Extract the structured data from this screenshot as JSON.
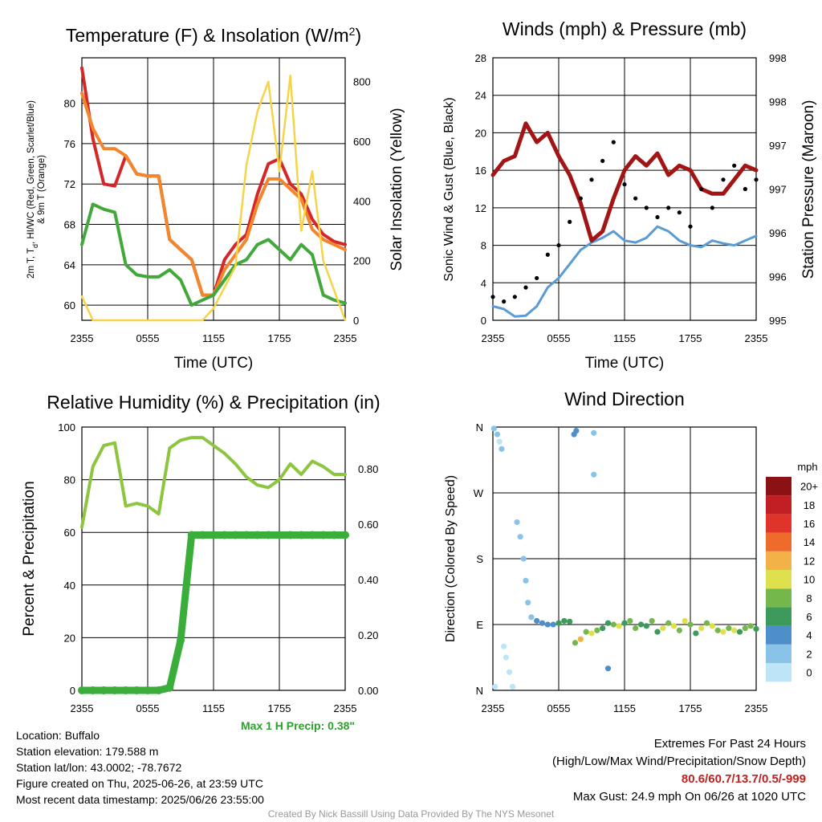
{
  "colors": {
    "red": "#d62728",
    "orange": "#f2862d",
    "green": "#42a83a",
    "yellow": "#f5d547",
    "maroon": "#a31515",
    "blue": "#5b9bd5",
    "black": "#000000",
    "rh": "#8cc63f",
    "precip": "#3aad3a"
  },
  "time_ticks": [
    "2355",
    "0555",
    "1155",
    "1755",
    "2355"
  ],
  "chart_data": [
    {
      "type": "line",
      "title": "Temperature (F) & Insolation (W/m²)",
      "xlabel": "Time (UTC)",
      "ylabel": "2m T, Td, HI/WC (Red, Green, Scarlet/Blue) & 9m T (Orange)",
      "ylabel2": "Solar Insolation (Yellow)",
      "yticks": [
        60,
        64,
        68,
        72,
        76,
        80
      ],
      "ylim": [
        58.5,
        84.5
      ],
      "yticks2": [
        0,
        200,
        400,
        600,
        800
      ],
      "ylim2": [
        0,
        880
      ],
      "x": [
        0,
        1,
        2,
        3,
        4,
        5,
        6,
        7,
        8,
        9,
        10,
        11,
        12,
        13,
        14,
        15,
        16,
        17,
        18,
        19,
        20,
        21,
        22,
        23,
        24
      ],
      "series": [
        {
          "name": "2m T",
          "axis": "left",
          "color": "red",
          "values": [
            83.5,
            76.5,
            72,
            71.8,
            74.8,
            73,
            72.8,
            72.8,
            66.5,
            65.5,
            64.5,
            61,
            61,
            64.5,
            66,
            67,
            71,
            74,
            74.5,
            72,
            71,
            68.5,
            67,
            66.3,
            66
          ]
        },
        {
          "name": "9m T",
          "axis": "left",
          "color": "orange",
          "values": [
            81,
            77.5,
            75.5,
            75.5,
            74.8,
            73,
            72.8,
            72.8,
            66.5,
            65.5,
            64.5,
            61,
            61,
            63.5,
            65,
            66.5,
            70,
            72.5,
            72.5,
            71.5,
            70.5,
            67.5,
            66.5,
            66,
            65.5
          ]
        },
        {
          "name": "Td",
          "axis": "left",
          "color": "green",
          "values": [
            66,
            70,
            69.5,
            69.2,
            64,
            63,
            62.8,
            62.8,
            63.5,
            62.5,
            60,
            60.5,
            61,
            62.5,
            64,
            64.5,
            66,
            66.5,
            65.5,
            64.5,
            66,
            65,
            61,
            60.5,
            60.2
          ]
        },
        {
          "name": "Solar Insolation",
          "axis": "right",
          "color": "yellow",
          "values": [
            80,
            0,
            0,
            0,
            0,
            0,
            0,
            0,
            0,
            0,
            0,
            0,
            40,
            110,
            180,
            520,
            700,
            800,
            500,
            820,
            300,
            500,
            200,
            100,
            0
          ]
        }
      ]
    },
    {
      "type": "line",
      "title": "Winds (mph) & Pressure (mb)",
      "xlabel": "Time (UTC)",
      "ylabel": "Sonic Wind & Gust (Blue, Black)",
      "ylabel2": "Station Pressure (Maroon)",
      "yticks": [
        0,
        4,
        8,
        12,
        16,
        20,
        24,
        28
      ],
      "ylim": [
        0,
        28
      ],
      "yticks2": [
        "995",
        "996",
        "996",
        "997",
        "997",
        "998",
        "998"
      ],
      "x": [
        0,
        1,
        2,
        3,
        4,
        5,
        6,
        7,
        8,
        9,
        10,
        11,
        12,
        13,
        14,
        15,
        16,
        17,
        18,
        19,
        20,
        21,
        22,
        23,
        24
      ],
      "series": [
        {
          "name": "Sonic Wind",
          "color": "blue",
          "values": [
            1.5,
            1.2,
            0.4,
            0.5,
            1.5,
            3.5,
            4.5,
            6,
            7.5,
            8.3,
            8.8,
            9.5,
            8.5,
            8.3,
            8.8,
            10,
            9.5,
            8.5,
            8,
            7.8,
            8.5,
            8.2,
            8,
            8.5,
            9
          ]
        },
        {
          "name": "Gust",
          "color": "black",
          "values": [
            2.5,
            2,
            2.5,
            3.5,
            4.5,
            7,
            8,
            10.5,
            13,
            15,
            17,
            19,
            14.5,
            13,
            12,
            11,
            12,
            11.5,
            10,
            14,
            12,
            15,
            16.5,
            14,
            15
          ]
        },
        {
          "name": "Station Pressure",
          "color": "maroon",
          "values": [
            15.5,
            17,
            17.5,
            21,
            19,
            20,
            17.5,
            15.5,
            12.5,
            8.5,
            9.5,
            13,
            16,
            17.5,
            16.5,
            17.8,
            15.5,
            16.5,
            16,
            14,
            13.5,
            13.5,
            15,
            16.5,
            16
          ]
        }
      ]
    },
    {
      "type": "line",
      "title": "Relative Humidity (%) & Precipitation (in)",
      "ylabel": "Percent & Precipitation",
      "yticks": [
        0,
        20,
        40,
        60,
        80,
        100
      ],
      "ylim": [
        0,
        100
      ],
      "yticks2": [
        "0.00",
        "0.20",
        "0.40",
        "0.60",
        "0.80"
      ],
      "x": [
        0,
        1,
        2,
        3,
        4,
        5,
        6,
        7,
        8,
        9,
        10,
        11,
        12,
        13,
        14,
        15,
        16,
        17,
        18,
        19,
        20,
        21,
        22,
        23,
        24
      ],
      "series": [
        {
          "name": "Relative Humidity",
          "color": "rh",
          "values": [
            62,
            85,
            93,
            94,
            70,
            71,
            70,
            67,
            92,
            95,
            96,
            96,
            93,
            90,
            86,
            81,
            78,
            77,
            80,
            86,
            82,
            87,
            85,
            82,
            82
          ]
        },
        {
          "name": "Precipitation",
          "color": "precip",
          "values": [
            0,
            0,
            0,
            0,
            0,
            0,
            0,
            0,
            1,
            19,
            59,
            59,
            59,
            59,
            59,
            59,
            59,
            59,
            59,
            59,
            59,
            59,
            59,
            59,
            59
          ]
        }
      ],
      "annotation": "Max 1 H Precip: 0.38\""
    },
    {
      "type": "scatter",
      "title": "Wind Direction",
      "ylabel": "Direction (Colored By Speed)",
      "yticks": [
        "N",
        "E",
        "S",
        "W",
        "N"
      ],
      "ylim_deg": [
        0,
        360
      ],
      "colorbar_title": "mph",
      "colorbar_labels": [
        "0",
        "2",
        "4",
        "6",
        "8",
        "10",
        "12",
        "14",
        "16",
        "18",
        "20+"
      ],
      "colorbar_colors": [
        "#bde4f7",
        "#89c4e8",
        "#4f8fc9",
        "#3c9a5a",
        "#74b84c",
        "#dfe04e",
        "#f3b247",
        "#ef6b2c",
        "#e0342a",
        "#c11f24",
        "#8b1114"
      ],
      "points": [
        [
          0.1,
          358,
          2
        ],
        [
          0.2,
          5,
          1
        ],
        [
          0.4,
          350,
          2
        ],
        [
          0.6,
          340,
          1
        ],
        [
          0.8,
          330,
          2
        ],
        [
          1.0,
          60,
          1
        ],
        [
          1.2,
          45,
          1
        ],
        [
          1.5,
          25,
          1
        ],
        [
          1.8,
          5,
          1
        ],
        [
          2.2,
          230,
          2
        ],
        [
          2.5,
          210,
          2
        ],
        [
          2.8,
          180,
          2
        ],
        [
          3.0,
          150,
          2
        ],
        [
          3.2,
          120,
          2
        ],
        [
          3.5,
          100,
          3
        ],
        [
          4.0,
          95,
          4
        ],
        [
          4.5,
          92,
          4
        ],
        [
          5.0,
          90,
          4
        ],
        [
          5.5,
          90,
          5
        ],
        [
          6.0,
          92,
          6
        ],
        [
          6.5,
          95,
          7
        ],
        [
          7.0,
          94,
          6
        ],
        [
          7.5,
          65,
          9
        ],
        [
          8.0,
          70,
          12
        ],
        [
          8.5,
          80,
          8
        ],
        [
          9.0,
          78,
          10
        ],
        [
          9.5,
          82,
          8
        ],
        [
          10.0,
          85,
          7
        ],
        [
          10.5,
          92,
          6
        ],
        [
          11.0,
          90,
          8
        ],
        [
          11.5,
          88,
          10
        ],
        [
          12.0,
          92,
          7
        ],
        [
          12.5,
          95,
          8
        ],
        [
          13.0,
          85,
          9
        ],
        [
          13.5,
          90,
          7
        ],
        [
          14.0,
          88,
          6
        ],
        [
          14.5,
          95,
          8
        ],
        [
          15.0,
          80,
          7
        ],
        [
          15.5,
          85,
          10
        ],
        [
          16.0,
          92,
          8
        ],
        [
          16.5,
          88,
          10
        ],
        [
          17.0,
          82,
          9
        ],
        [
          17.5,
          95,
          11
        ],
        [
          18.0,
          90,
          8
        ],
        [
          18.5,
          78,
          7
        ],
        [
          19.0,
          85,
          10
        ],
        [
          19.5,
          92,
          8
        ],
        [
          20.0,
          88,
          10
        ],
        [
          20.5,
          82,
          9
        ],
        [
          21.0,
          80,
          11
        ],
        [
          21.5,
          85,
          8
        ],
        [
          22.0,
          82,
          10
        ],
        [
          22.5,
          80,
          7
        ],
        [
          23.0,
          85,
          9
        ],
        [
          23.5,
          88,
          8
        ],
        [
          24.0,
          84,
          7
        ],
        [
          7.4,
          350,
          5
        ],
        [
          7.6,
          355,
          5
        ],
        [
          9.2,
          352,
          3
        ],
        [
          9.2,
          295,
          3
        ],
        [
          10.5,
          30,
          4
        ]
      ]
    }
  ],
  "info": {
    "location": "Location: Buffalo",
    "elevation": "Station elevation: 179.588 m",
    "latlon": "Station lat/lon: 43.0002; -78.7672",
    "created": "Figure created on Thu, 2025-06-26, at 23:59 UTC",
    "recent": "Most recent data timestamp: 2025/06/26 23:55:00",
    "max_precip": "Max 1 H Precip: 0.38\"",
    "extremes_title": "Extremes For Past 24 Hours",
    "extremes_sub": "(High/Low/Max Wind/Precipitation/Snow Depth)",
    "extremes_values": "80.6/60.7/13.7/0.5/-999",
    "max_gust": "Max Gust: 24.9 mph On 06/26 at 1020 UTC",
    "credit": "Created By Nick Bassill Using Data Provided By The NYS Mesonet"
  }
}
